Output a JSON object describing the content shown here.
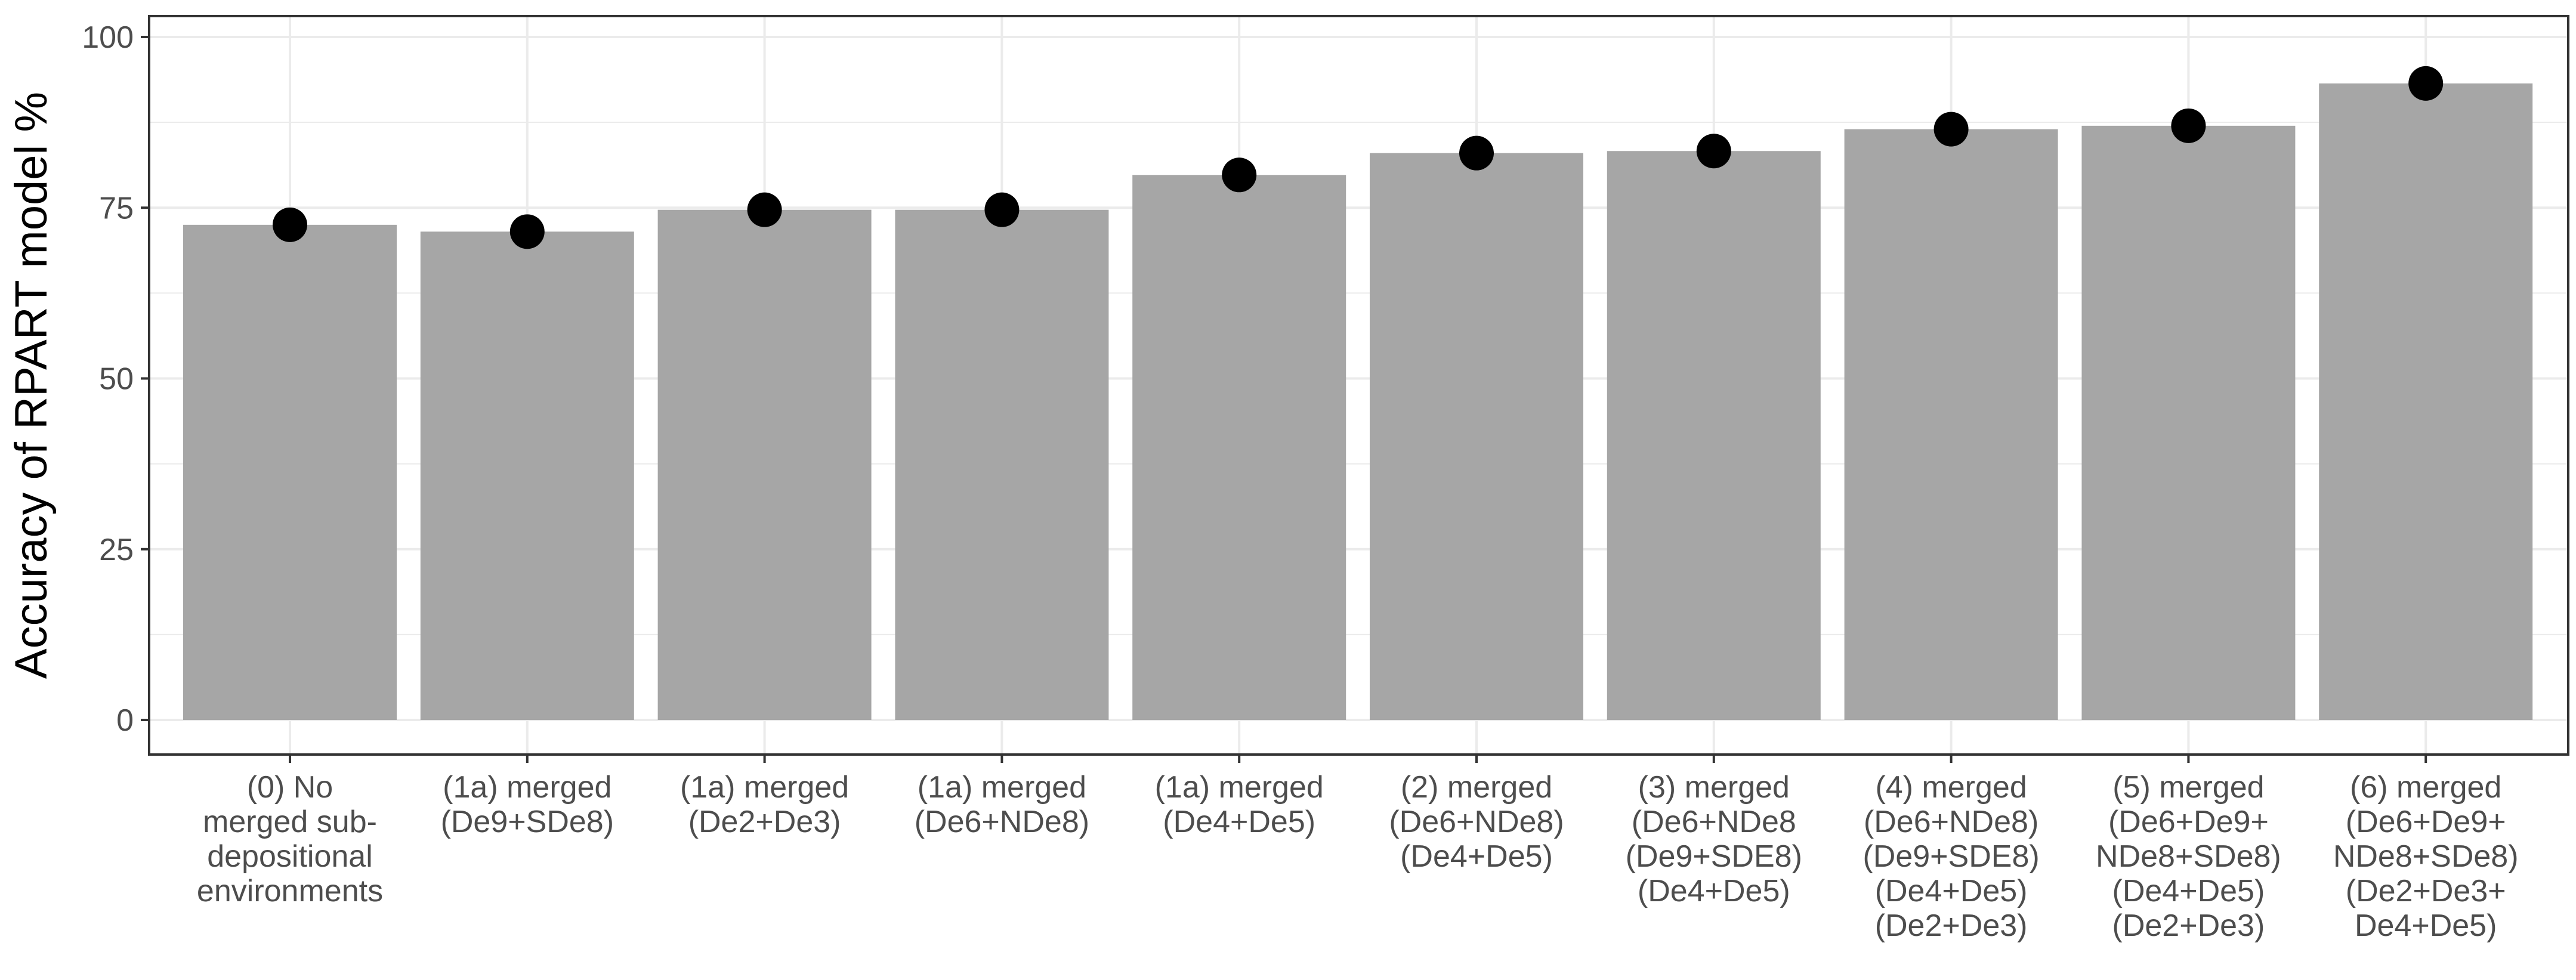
{
  "chart_data": {
    "type": "bar",
    "title": "",
    "xlabel": "",
    "ylabel": "Accuracy of RPART model %",
    "ylim": [
      0,
      100
    ],
    "yticks": [
      0,
      25,
      50,
      75,
      100
    ],
    "grid": true,
    "categories": [
      [
        "(0) No",
        "merged sub-",
        "depositional",
        "environments"
      ],
      [
        "(1a) merged",
        "(De9+SDe8)"
      ],
      [
        "(1a) merged",
        "(De2+De3)"
      ],
      [
        "(1a) merged",
        "(De6+NDe8)"
      ],
      [
        "(1a) merged",
        "(De4+De5)"
      ],
      [
        "(2) merged",
        "(De6+NDe8)",
        "(De4+De5)"
      ],
      [
        "(3) merged",
        "(De6+NDe8",
        "(De9+SDE8)",
        "(De4+De5)"
      ],
      [
        "(4) merged",
        "(De6+NDe8)",
        "(De9+SDE8)",
        "(De4+De5)",
        "(De2+De3)"
      ],
      [
        "(5) merged",
        "(De6+De9+",
        "NDe8+SDe8)",
        "(De4+De5)",
        "(De2+De3)"
      ],
      [
        "(6) merged",
        "(De6+De9+",
        "NDe8+SDe8)",
        "(De2+De3+",
        "De4+De5)"
      ]
    ],
    "values": [
      72.5,
      71.5,
      74.7,
      74.7,
      79.8,
      83.0,
      83.3,
      86.5,
      87.0,
      93.2
    ],
    "points": [
      72.5,
      71.5,
      74.7,
      74.7,
      79.8,
      83.0,
      83.3,
      86.5,
      87.0,
      93.2
    ],
    "colors": {
      "bar": "#a6a6a6",
      "point": "#000000",
      "grid": "#ebebeb",
      "panel_border": "#333333",
      "axis_text": "#4d4d4d",
      "axis_title": "#000000"
    }
  }
}
